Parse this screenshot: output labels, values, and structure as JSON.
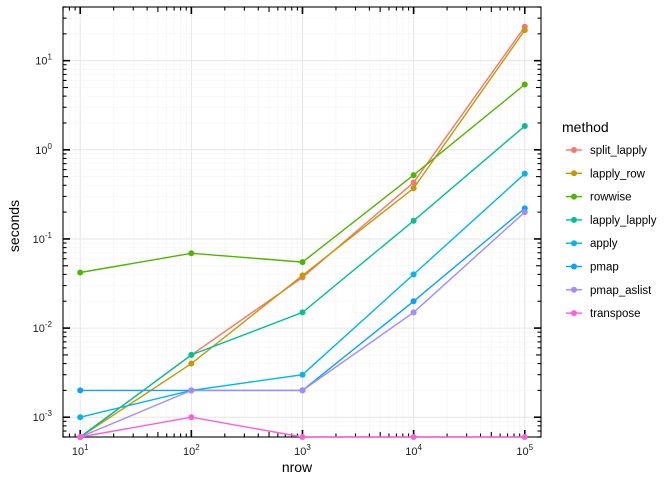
{
  "chart_data": {
    "type": "line",
    "xlabel": "nrow",
    "ylabel": "seconds",
    "x_scale": "log10",
    "y_scale": "log10",
    "x": [
      10,
      100,
      1000,
      10000,
      100000
    ],
    "x_ticks": [
      {
        "value": 10,
        "base": "10",
        "exp": "1"
      },
      {
        "value": 100,
        "base": "10",
        "exp": "2"
      },
      {
        "value": 1000,
        "base": "10",
        "exp": "3"
      },
      {
        "value": 10000,
        "base": "10",
        "exp": "4"
      },
      {
        "value": 100000,
        "base": "10",
        "exp": "5"
      }
    ],
    "y_ticks": [
      {
        "value": 0.001,
        "base": "10",
        "exp": "-3"
      },
      {
        "value": 0.01,
        "base": "10",
        "exp": "-2"
      },
      {
        "value": 0.1,
        "base": "10",
        "exp": "-1"
      },
      {
        "value": 1,
        "base": "10",
        "exp": "0"
      },
      {
        "value": 10,
        "base": "10",
        "exp": "1"
      }
    ],
    "xlim": [
      7,
      140000
    ],
    "ylim": [
      0.0006,
      40
    ],
    "grid": true,
    "legend_title": "method",
    "legend_position": "right",
    "series": [
      {
        "name": "split_lapply",
        "color": "#F8766D",
        "values": [
          0.0006,
          0.005,
          0.037,
          0.43,
          24
        ]
      },
      {
        "name": "lapply_row",
        "color": "#C49A00",
        "values": [
          0.0006,
          0.004,
          0.039,
          0.37,
          22
        ]
      },
      {
        "name": "rowwise",
        "color": "#53B400",
        "values": [
          0.042,
          0.069,
          0.055,
          0.52,
          5.4
        ]
      },
      {
        "name": "lapply_lapply",
        "color": "#00C094",
        "values": [
          0.0006,
          0.005,
          0.015,
          0.16,
          1.85
        ]
      },
      {
        "name": "apply",
        "color": "#00B6EB",
        "values": [
          0.001,
          0.002,
          0.003,
          0.04,
          0.54
        ]
      },
      {
        "name": "pmap",
        "color": "#06A4FF",
        "values": [
          0.002,
          0.002,
          0.002,
          0.02,
          0.22
        ]
      },
      {
        "name": "pmap_aslist",
        "color": "#A58AFF",
        "values": [
          0.0006,
          0.002,
          0.002,
          0.015,
          0.2
        ]
      },
      {
        "name": "transpose",
        "color": "#FB61D7",
        "values": [
          0.0006,
          0.001,
          0.0006,
          0.0006,
          0.0006
        ]
      }
    ]
  }
}
